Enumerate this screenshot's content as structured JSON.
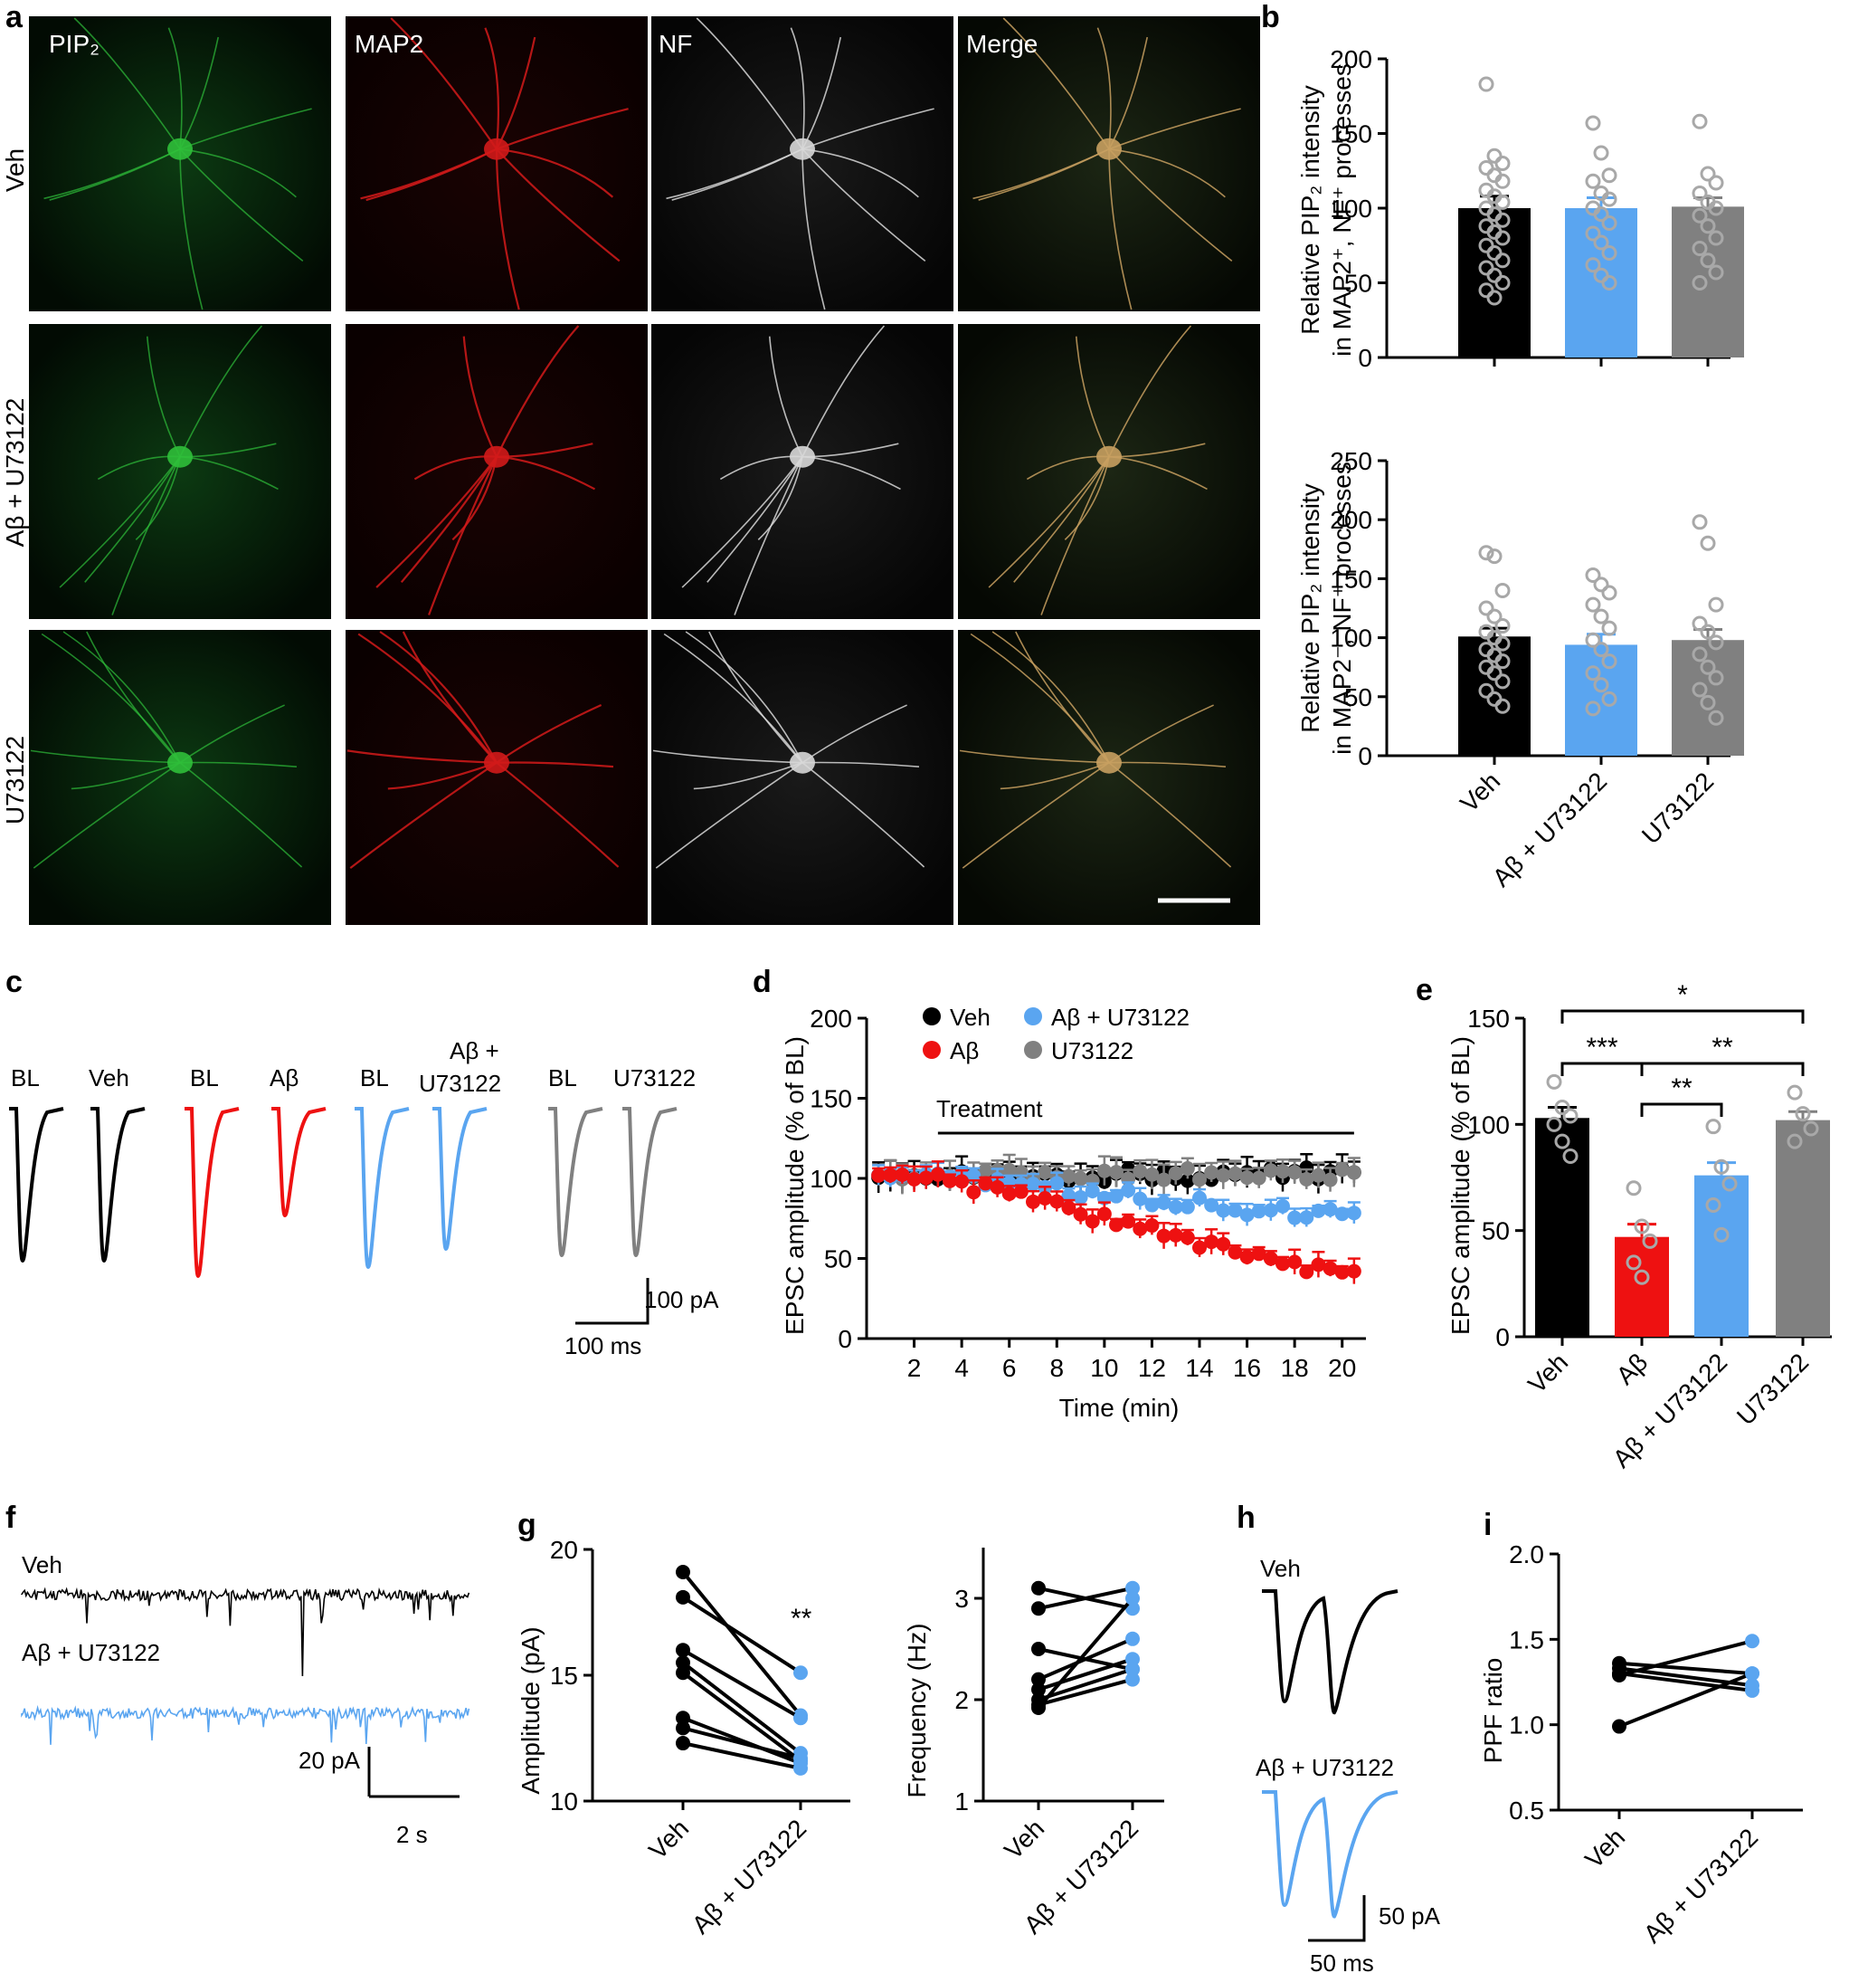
{
  "panel_letters": {
    "a": "a",
    "b": "b",
    "c": "c",
    "d": "d",
    "e": "e",
    "f": "f",
    "g": "g",
    "h": "h",
    "i": "i"
  },
  "panel_a": {
    "channels": [
      "PIP₂",
      "MAP2",
      "NF",
      "Merge"
    ],
    "rows": [
      "Veh",
      "Aβ + U73122",
      "U73122"
    ]
  },
  "panel_c": {
    "groups": [
      {
        "bl": "BL",
        "tx": "Veh",
        "color": "#000000"
      },
      {
        "bl": "BL",
        "tx": "Aβ",
        "color": "#ee1111"
      },
      {
        "bl": "BL",
        "tx_line1": "Aβ +",
        "tx_line2": "U73122",
        "color": "#5aa5f0"
      },
      {
        "bl": "BL",
        "tx": "U73122",
        "color": "#808080"
      }
    ],
    "scale_y": "100 pA",
    "scale_x": "100 ms"
  },
  "panel_f": {
    "trace1": "Veh",
    "trace2": "Aβ + U73122",
    "scale_y": "20 pA",
    "scale_x": "2 s",
    "colors": {
      "veh": "#000000",
      "ab": "#5aa5f0"
    }
  },
  "panel_h": {
    "trace1": "Veh",
    "trace2": "Aβ + U73122",
    "scale_y": "50 pA",
    "scale_x": "50 ms"
  },
  "colors": {
    "veh": "#000000",
    "ab": "#ee1111",
    "abu": "#5aa5f0",
    "u": "#808080",
    "dot": "#a8a8a8"
  },
  "chart_data": [
    {
      "id": "b_top",
      "type": "bar",
      "ylabel_line1": "Relative PIP₂ intensity",
      "ylabel_line2": "in MAP2⁺, NF⁺ processes",
      "ylim": [
        0,
        200
      ],
      "yticks": [
        0,
        50,
        100,
        150,
        200
      ],
      "categories": [
        "Veh",
        "Aβ + U73122",
        "U73122"
      ],
      "values": [
        100,
        100,
        101
      ],
      "errors": [
        8,
        7,
        6
      ],
      "points": [
        [
          183,
          135,
          130,
          127,
          122,
          118,
          112,
          108,
          104,
          100,
          96,
          92,
          88,
          84,
          80,
          75,
          70,
          65,
          60,
          55,
          50,
          45,
          40
        ],
        [
          157,
          137,
          122,
          118,
          110,
          106,
          100,
          96,
          90,
          83,
          77,
          70,
          62,
          55,
          50
        ],
        [
          158,
          123,
          117,
          110,
          104,
          100,
          95,
          88,
          80,
          73,
          65,
          57,
          50
        ]
      ]
    },
    {
      "id": "b_bottom",
      "type": "bar",
      "ylabel_line1": "Relative PIP₂ intensity",
      "ylabel_line2": "in MAP2⁻, NF⁺ processes",
      "ylim": [
        0,
        250
      ],
      "yticks": [
        0,
        50,
        100,
        150,
        200,
        250
      ],
      "categories": [
        "Veh",
        "Aβ + U73122",
        "U73122"
      ],
      "values": [
        101,
        94,
        98
      ],
      "errors": [
        7,
        9,
        9
      ],
      "points": [
        [
          172,
          169,
          140,
          125,
          118,
          110,
          105,
          100,
          95,
          90,
          85,
          80,
          75,
          70,
          63,
          55,
          48,
          42
        ],
        [
          153,
          145,
          138,
          128,
          118,
          108,
          98,
          90,
          80,
          70,
          60,
          48,
          40
        ],
        [
          198,
          180,
          128,
          112,
          105,
          96,
          86,
          75,
          66,
          56,
          45,
          32
        ]
      ]
    },
    {
      "id": "d",
      "type": "scatter",
      "ylabel": "EPSC amplitude (% of BL)",
      "xlabel": "Time (min)",
      "xlim": [
        0,
        21
      ],
      "ylim": [
        0,
        200
      ],
      "xticks": [
        2,
        4,
        6,
        8,
        10,
        12,
        14,
        16,
        18,
        20
      ],
      "yticks": [
        0,
        50,
        100,
        150,
        200
      ],
      "annotation": "Treatment",
      "treatment_range": [
        3,
        20.5
      ],
      "legend": [
        "Veh",
        "Aβ + U73122",
        "Aβ",
        "U73122"
      ],
      "series": [
        {
          "name": "Veh",
          "color": "#000000",
          "start": 101,
          "end": 103,
          "err": 7
        },
        {
          "name": "U73122",
          "color": "#808080",
          "start": 101,
          "end": 103,
          "err": 7
        },
        {
          "name": "Aβ + U73122",
          "color": "#5aa5f0",
          "start": 101,
          "end": 78,
          "err": 5
        },
        {
          "name": "Aβ",
          "color": "#ee1111",
          "start": 101,
          "end": 45,
          "err": 6
        }
      ]
    },
    {
      "id": "e",
      "type": "bar",
      "ylabel": "EPSC amplitude (% of BL)",
      "ylim": [
        0,
        150
      ],
      "yticks": [
        0,
        50,
        100,
        150
      ],
      "categories": [
        "Veh",
        "Aβ",
        "Aβ + U73122",
        "U73122"
      ],
      "values": [
        103,
        47,
        76,
        102
      ],
      "errors": [
        5,
        6,
        6,
        4
      ],
      "points": [
        [
          120,
          108,
          104,
          100,
          92,
          85
        ],
        [
          70,
          52,
          45,
          35,
          28
        ],
        [
          99,
          80,
          72,
          62,
          48
        ],
        [
          115,
          105,
          98,
          92
        ]
      ],
      "significance": [
        {
          "label": "*",
          "from": 0,
          "to": 3,
          "level": 1
        },
        {
          "label": "***",
          "from": 0,
          "to": 1,
          "level": 2
        },
        {
          "label": "**",
          "from": 1,
          "to": 3,
          "level": 2
        },
        {
          "label": "**",
          "from": 1,
          "to": 2,
          "level": 3
        }
      ]
    },
    {
      "id": "g_amp",
      "type": "scatter",
      "ylabel": "Amplitude (pA)",
      "ylim": [
        10,
        20
      ],
      "yticks": [
        10,
        15,
        20
      ],
      "categories": [
        "Veh",
        "Aβ + U73122"
      ],
      "annotation": "**",
      "pairs": [
        [
          19.1,
          13.4
        ],
        [
          18.1,
          15.1
        ],
        [
          16.0,
          13.3
        ],
        [
          15.5,
          11.9
        ],
        [
          15.1,
          11.6
        ],
        [
          13.3,
          11.5
        ],
        [
          12.9,
          11.7
        ],
        [
          12.3,
          11.3
        ]
      ]
    },
    {
      "id": "g_freq",
      "type": "scatter",
      "ylabel": "Frequency (Hz)",
      "ylim": [
        1,
        3.5
      ],
      "yticks": [
        1,
        2,
        3
      ],
      "categories": [
        "Veh",
        "Aβ + U73122"
      ],
      "pairs": [
        [
          3.1,
          2.9
        ],
        [
          2.9,
          3.1
        ],
        [
          2.5,
          2.3
        ],
        [
          2.2,
          2.6
        ],
        [
          2.1,
          2.4
        ],
        [
          2.0,
          2.3
        ],
        [
          1.95,
          2.2
        ],
        [
          1.92,
          3.0
        ]
      ]
    },
    {
      "id": "i",
      "type": "scatter",
      "ylabel": "PPF ratio",
      "ylim": [
        0.5,
        2.0
      ],
      "yticks": [
        0.5,
        1.0,
        1.5,
        2.0
      ],
      "categories": [
        "Veh",
        "Aβ + U73122"
      ],
      "pairs": [
        [
          1.36,
          1.3
        ],
        [
          1.33,
          1.23
        ],
        [
          1.3,
          1.2
        ],
        [
          1.29,
          1.49
        ],
        [
          0.99,
          1.3
        ]
      ]
    }
  ]
}
